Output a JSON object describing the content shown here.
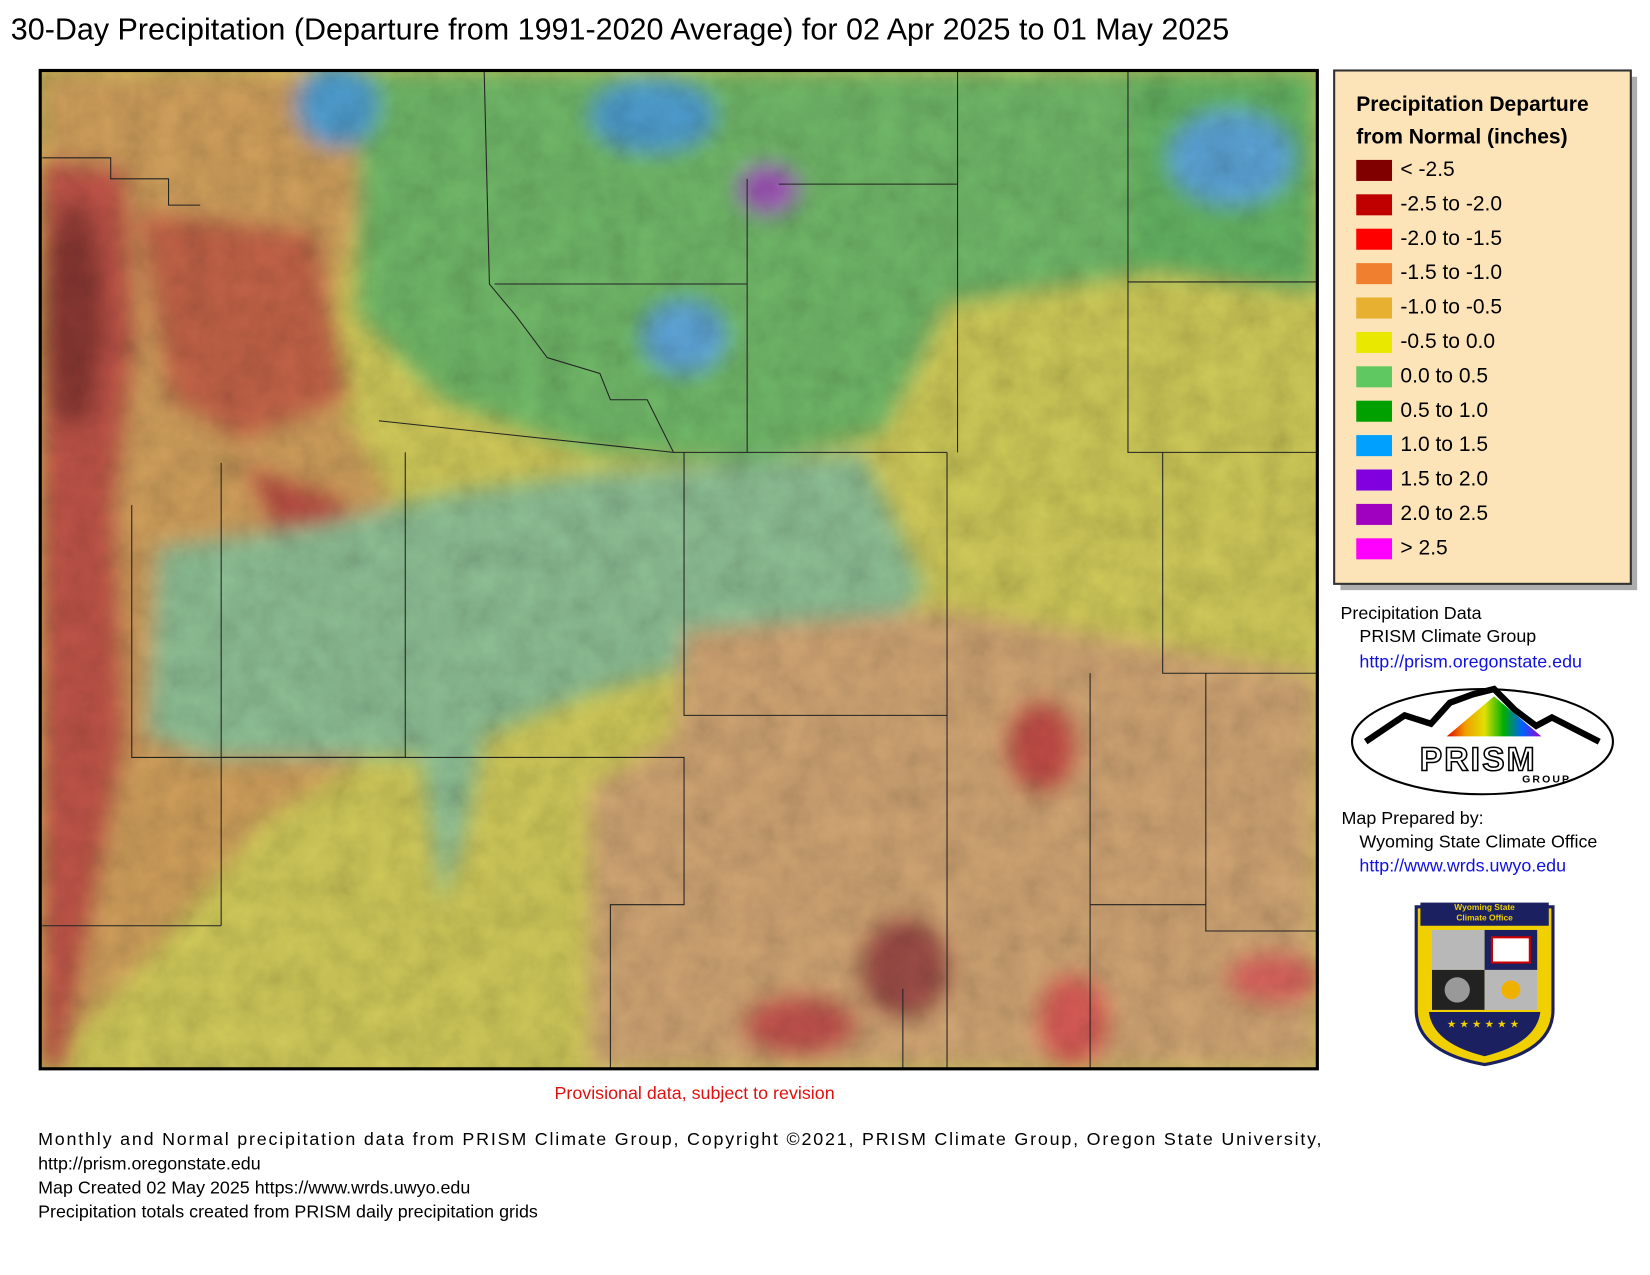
{
  "title": "30-Day Precipitation (Departure from 1991-2020 Average) for 02 Apr 2025 to 01 May 2025",
  "map": {
    "provisional_note": "Provisional data, subject to revision"
  },
  "legend": {
    "title_lines": [
      "Precipitation Departure",
      "from Normal (inches)"
    ],
    "items": [
      {
        "label": "< -2.5",
        "color": "#800000"
      },
      {
        "label": "-2.5 to -2.0",
        "color": "#c00000"
      },
      {
        "label": "-2.0 to -1.5",
        "color": "#ff0000"
      },
      {
        "label": "-1.5 to -1.0",
        "color": "#f08030"
      },
      {
        "label": "-1.0 to -0.5",
        "color": "#e8b030"
      },
      {
        "label": "-0.5 to 0.0",
        "color": "#e8e800"
      },
      {
        "label": "0.0 to 0.5",
        "color": "#60c860"
      },
      {
        "label": "0.5 to 1.0",
        "color": "#00a000"
      },
      {
        "label": "1.0 to 1.5",
        "color": "#00a0ff"
      },
      {
        "label": "1.5 to 2.0",
        "color": "#8000e0"
      },
      {
        "label": "2.0 to 2.5",
        "color": "#a000c0"
      },
      {
        "label": "> 2.5",
        "color": "#ff00ff"
      }
    ]
  },
  "credits": {
    "data_heading": "Precipitation Data",
    "data_source": "PRISM Climate Group",
    "data_url": "http://prism.oregonstate.edu",
    "prepared_heading": "Map Prepared by:",
    "prepared_by": "Wyoming State Climate Office",
    "prepared_url": "http://www.wrds.uwyo.edu"
  },
  "logos": {
    "prism_name": "PRISM",
    "prism_sub": "GROUP",
    "wsco_lines": [
      "Wyoming State",
      "Climate Office"
    ]
  },
  "footer": [
    "Monthly and Normal precipitation data from PRISM Climate Group, Copyright ©2021, PRISM Climate Group, Oregon State University,",
    "http://prism.oregonstate.edu",
    "Map Created 02 May 2025 https://www.wrds.uwyo.edu",
    "Precipitation totals created from PRISM daily precipitation grids"
  ]
}
